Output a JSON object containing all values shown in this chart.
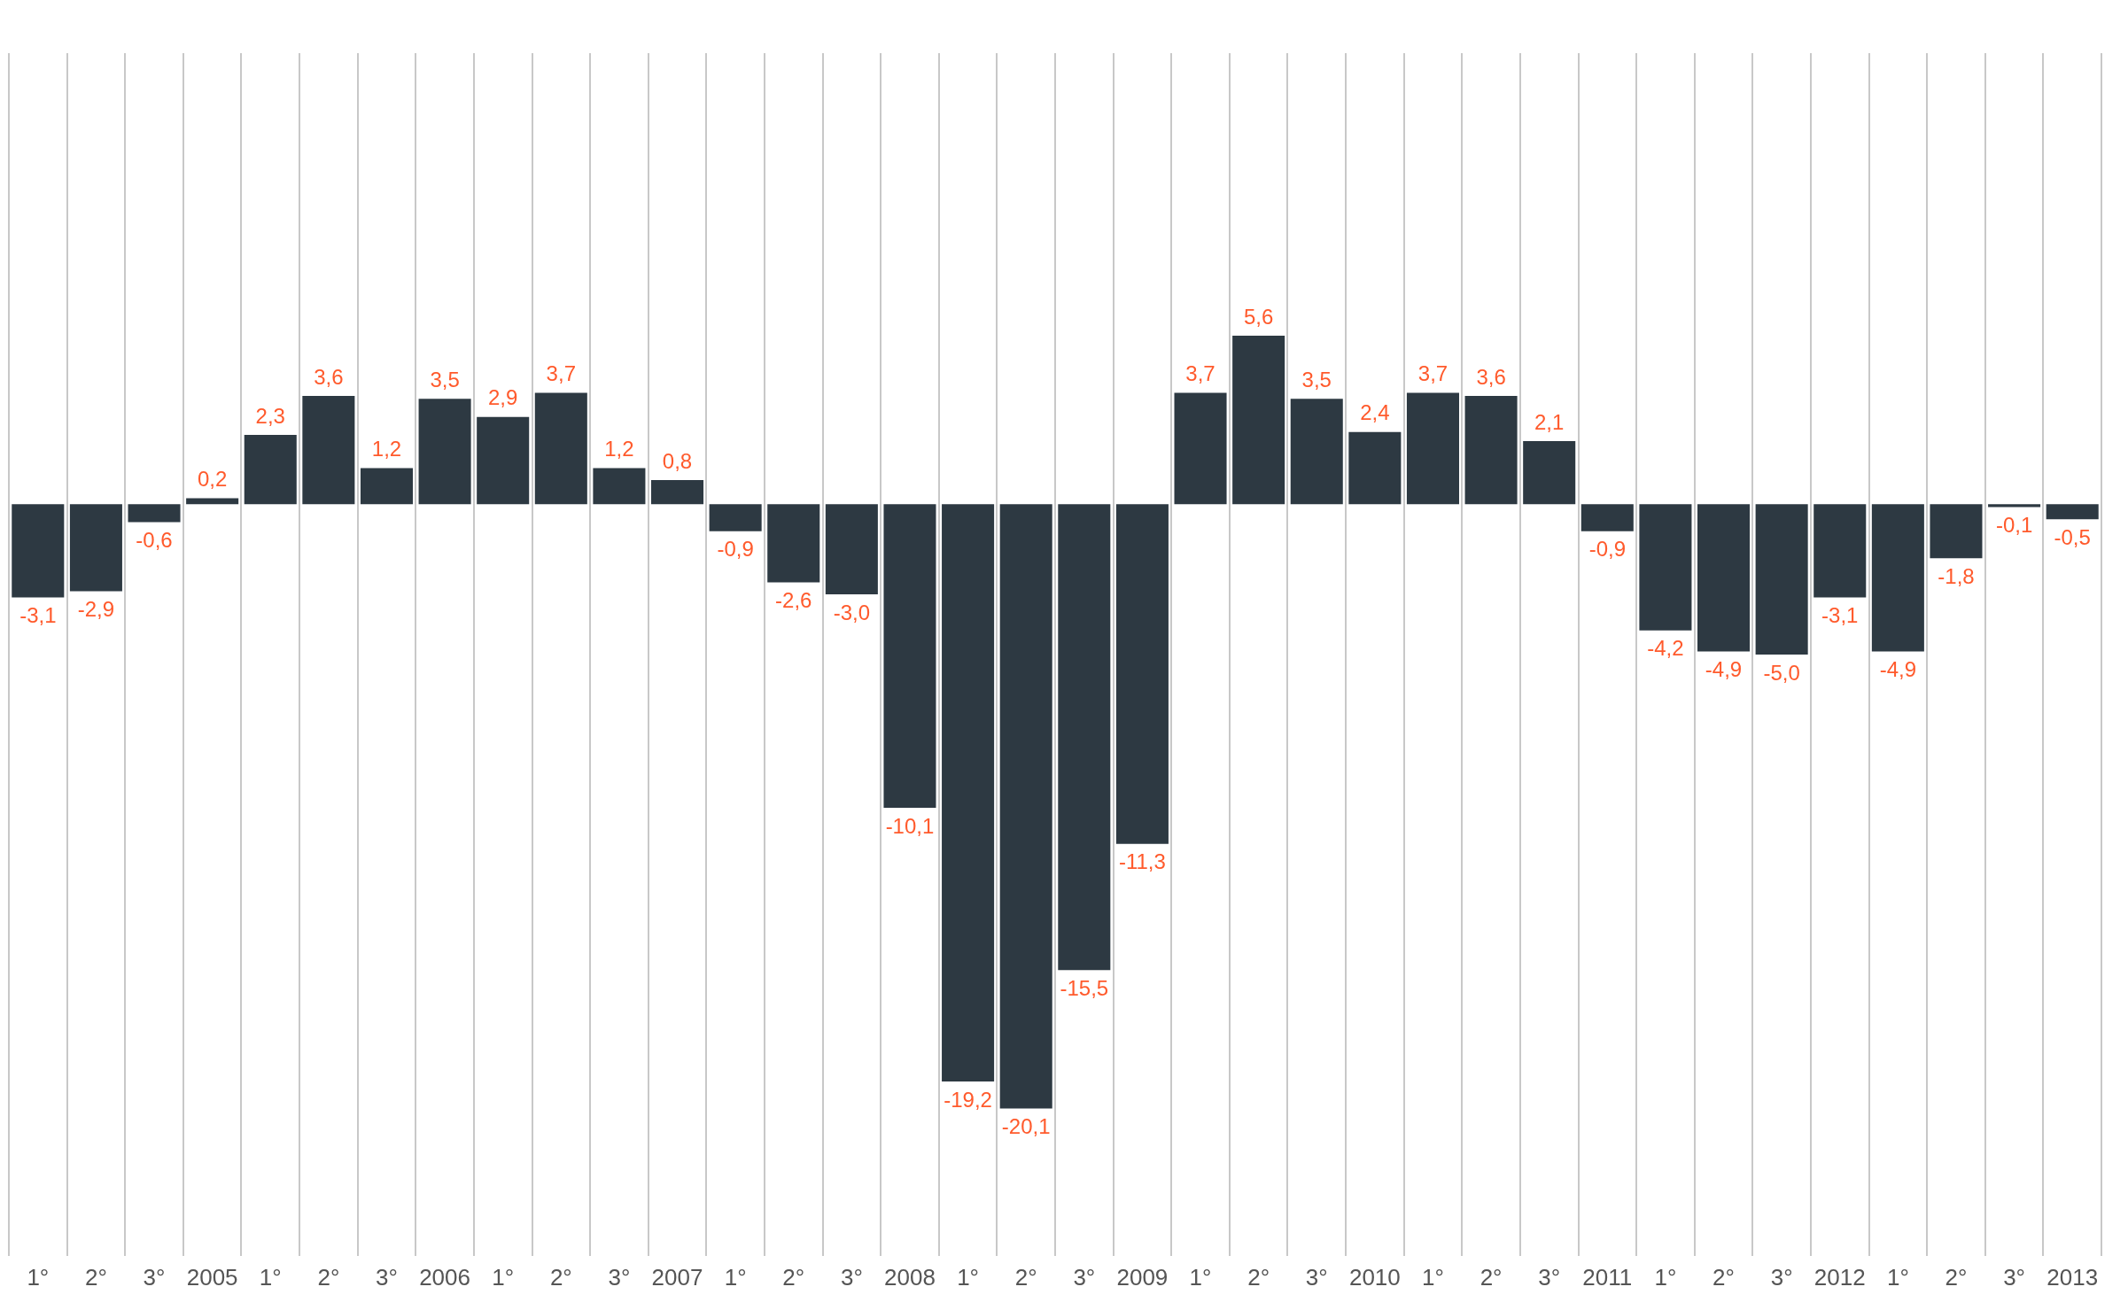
{
  "chart_data": {
    "type": "bar",
    "categories": [
      "1°",
      "2°",
      "3°",
      "2005",
      "1°",
      "2°",
      "3°",
      "2006",
      "1°",
      "2°",
      "3°",
      "2007",
      "1°",
      "2°",
      "3°",
      "2008",
      "1°",
      "2°",
      "3°",
      "2009",
      "1°",
      "2°",
      "3°",
      "2010",
      "1°",
      "2°",
      "3°",
      "2011",
      "1°",
      "2°",
      "3°",
      "2012",
      "1°",
      "2°",
      "3°",
      "2013"
    ],
    "values": [
      -3.1,
      -2.9,
      -0.6,
      0.2,
      2.3,
      3.6,
      1.2,
      3.5,
      2.9,
      3.7,
      1.2,
      0.8,
      -0.9,
      -2.6,
      -3.0,
      -10.1,
      -19.2,
      -20.1,
      -15.5,
      -11.3,
      3.7,
      5.6,
      3.5,
      2.4,
      3.7,
      3.6,
      2.1,
      -0.9,
      -4.2,
      -4.9,
      -5.0,
      -3.1,
      -4.9,
      -1.8,
      -0.1,
      -0.5
    ],
    "value_labels": [
      "-3,1",
      "-2,9",
      "-0,6",
      "0,2",
      "2,3",
      "3,6",
      "1,2",
      "3,5",
      "2,9",
      "3,7",
      "1,2",
      "0,8",
      "-0,9",
      "-2,6",
      "-3,0",
      "-10,1",
      "-19,2",
      "-20,1",
      "-15,5",
      "-11,3",
      "3,7",
      "5,6",
      "3,5",
      "2,4",
      "3,7",
      "3,6",
      "2,1",
      "-0,9",
      "-4,2",
      "-4,9",
      "-5,0",
      "-3,1",
      "-4,9",
      "-1,8",
      "-0,1",
      "-0,5"
    ],
    "color": "#2d3942",
    "grid": "x",
    "legend": false
  }
}
